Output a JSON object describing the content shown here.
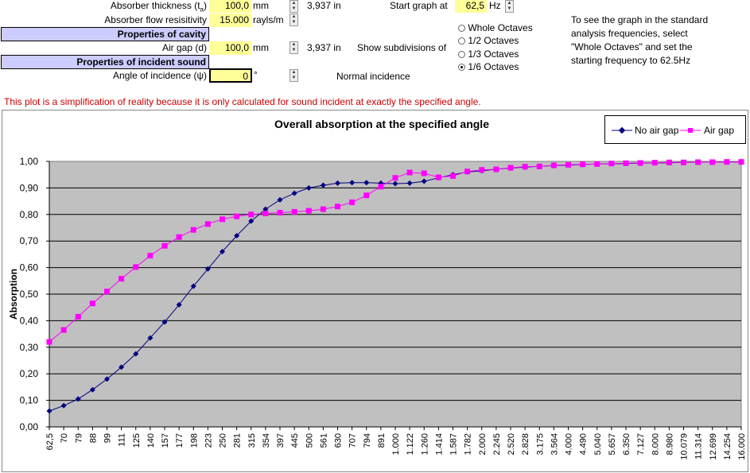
{
  "inputs": {
    "absorber_thickness_label": "Absorber thickness (t",
    "absorber_thickness_sub": "a",
    "absorber_thickness_suffix": ")",
    "absorber_thickness_value": "100,0",
    "absorber_thickness_unit": "mm",
    "absorber_thickness_inches": "3,937",
    "inch_unit": "in",
    "flow_label": "Absorber flow resisitivity",
    "flow_value": "15.000",
    "flow_unit": "rayls/m",
    "cavity_header": "Properties of cavity",
    "air_gap_label": "Air gap (d)",
    "air_gap_value": "100,0",
    "air_gap_unit": "mm",
    "air_gap_inches": "3,937",
    "incident_header": "Properties of incident sound",
    "angle_label": "Angle of incidence (ψ)",
    "angle_value": "0",
    "angle_unit": "°",
    "start_graph_label": "Start graph at",
    "start_graph_value": "62,5",
    "start_graph_unit": "Hz",
    "subdivisions_label": "Show subdivisions of",
    "normal_incidence": "Normal incidence"
  },
  "octave_options": [
    {
      "label": "Whole Octaves",
      "selected": false
    },
    {
      "label": "1/2 Octaves",
      "selected": false
    },
    {
      "label": "1/3 Octaves",
      "selected": false
    },
    {
      "label": "1/6 Octaves",
      "selected": true
    }
  ],
  "hint_lines": [
    "To see the graph in the standard",
    "analysis frequencies, select",
    "\"Whole Octaves\" and set the",
    "starting frequency to 62.5Hz"
  ],
  "note": "This plot is a simplification of reality because it is only calculated for sound incident at exactly the specified angle.",
  "chart_data": {
    "type": "line",
    "title": "Overall absorption at the specified angle",
    "xlabel": "",
    "ylabel": "Absorption",
    "ylim": [
      0,
      1
    ],
    "y_ticks": [
      "0,00",
      "0,10",
      "0,20",
      "0,30",
      "0,40",
      "0,50",
      "0,60",
      "0,70",
      "0,80",
      "0,90",
      "1,00"
    ],
    "legend_position": "top-right",
    "plot_background": "#c0c0c0",
    "categories": [
      "62,5",
      "70",
      "79",
      "88",
      "99",
      "111",
      "125",
      "140",
      "157",
      "177",
      "198",
      "223",
      "250",
      "281",
      "315",
      "354",
      "397",
      "445",
      "500",
      "561",
      "630",
      "707",
      "794",
      "891",
      "1.000",
      "1.122",
      "1.260",
      "1.414",
      "1.587",
      "1.782",
      "2.000",
      "2.245",
      "2.520",
      "2.828",
      "3.175",
      "3.564",
      "4.000",
      "4.490",
      "5.040",
      "5.657",
      "6.350",
      "7.127",
      "8.000",
      "8.980",
      "10.079",
      "11.314",
      "12.699",
      "14.254",
      "16.000"
    ],
    "series": [
      {
        "name": "No air gap",
        "color": "#000080",
        "marker": "diamond",
        "values": [
          0.06,
          0.08,
          0.105,
          0.14,
          0.18,
          0.225,
          0.275,
          0.335,
          0.395,
          0.46,
          0.53,
          0.595,
          0.66,
          0.72,
          0.775,
          0.82,
          0.855,
          0.88,
          0.9,
          0.91,
          0.918,
          0.92,
          0.92,
          0.918,
          0.916,
          0.918,
          0.925,
          0.938,
          0.95,
          0.96,
          0.965,
          0.97,
          0.975,
          0.978,
          0.981,
          0.984,
          0.986,
          0.988,
          0.99,
          0.991,
          0.992,
          0.993,
          0.994,
          0.995,
          0.996,
          0.997,
          0.997,
          0.998,
          0.998
        ]
      },
      {
        "name": "Air gap",
        "color": "#ff00ff",
        "marker": "square",
        "values": [
          0.32,
          0.365,
          0.415,
          0.465,
          0.51,
          0.558,
          0.602,
          0.645,
          0.682,
          0.715,
          0.742,
          0.764,
          0.782,
          0.793,
          0.8,
          0.804,
          0.807,
          0.81,
          0.814,
          0.82,
          0.83,
          0.846,
          0.872,
          0.905,
          0.938,
          0.958,
          0.955,
          0.94,
          0.945,
          0.962,
          0.968,
          0.97,
          0.976,
          0.98,
          0.981,
          0.985,
          0.987,
          0.989,
          0.99,
          0.992,
          0.993,
          0.994,
          0.995,
          0.996,
          0.996,
          0.997,
          0.997,
          0.998,
          0.998
        ]
      }
    ]
  }
}
